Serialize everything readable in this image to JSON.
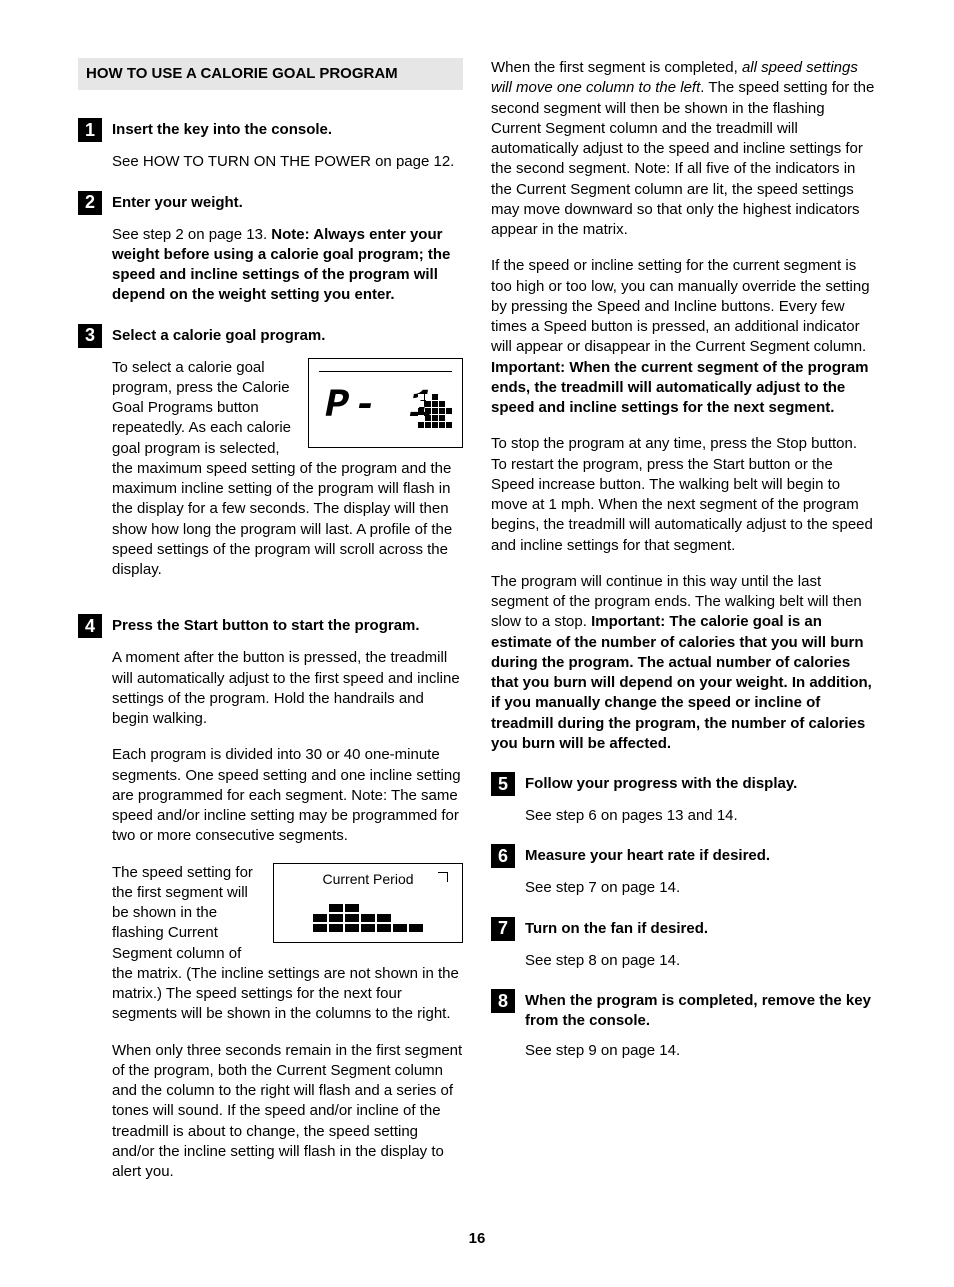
{
  "section_title": "HOW TO USE A CALORIE GOAL PROGRAM",
  "page_number": "16",
  "left": {
    "step1": {
      "num": "1",
      "head": "Insert the key into the console.",
      "p1": "See HOW TO TURN ON THE POWER on page 12."
    },
    "step2": {
      "num": "2",
      "head": "Enter your weight.",
      "p1_pre": "See step 2 on page 13. ",
      "p1_bold": "Note: Always enter your weight before using a calorie goal program; the speed and incline settings of the program will depend on the weight setting you enter."
    },
    "step3": {
      "num": "3",
      "head": "Select a calorie goal program.",
      "lcd_text": "P- 1",
      "p1": "To select a calorie goal program, press the Calorie Goal Programs button repeatedly. As each calorie goal program is selected, the maximum speed setting of the program and the maximum incline setting of the program will flash in the display for a few seconds. The display will then show how long the program will last. A profile of the speed settings of the program will scroll across the display."
    },
    "step4": {
      "num": "4",
      "head": "Press the Start button to start the program.",
      "p1": "A moment after the button is pressed, the treadmill will automatically adjust to the first speed and incline settings of the program. Hold the handrails and begin walking.",
      "p2": "Each program is divided into 30 or 40 one-minute segments. One speed setting and one incline setting are programmed for each segment. Note: The same speed and/or incline setting may be programmed for two or more consecutive segments.",
      "period_label": "Current Period",
      "p3": "The speed setting for the first segment will be shown in the flashing Current Segment column of the matrix. (The incline settings are not shown in the matrix.) The speed settings for the next four segments will be shown in the columns to the right.",
      "p4": "When only three seconds remain in the first segment of the program, both the Current Segment column and the column to the right will flash and a series of tones will sound. If the speed and/or incline of the treadmill is about to change, the speed setting and/or the incline setting will flash in the display to alert you."
    }
  },
  "right": {
    "cont": {
      "p1_pre": "When the first segment is completed, ",
      "p1_italic": "all speed settings will move one column to the left",
      "p1_post": ". The speed setting for the second segment will then be shown in the flashing Current Segment column and the treadmill will automatically adjust to the speed and incline settings for the second segment. Note: If all five of the indicators in the Current Segment column are lit, the speed settings may move downward so that only the highest indicators appear in the matrix.",
      "p2_pre": "If the speed or incline setting for the current segment is too high or too low, you can manually override the setting by pressing the Speed and Incline buttons. Every few times a Speed button is pressed, an additional indicator will appear or disappear in the Current Segment column. ",
      "p2_bold": "Important: When the current segment of the program ends, the treadmill will automatically adjust to the speed and incline settings for the next segment.",
      "p3": "To stop the program at any time, press the Stop button. To restart the program, press the Start button or the Speed increase button. The walking belt will begin to move at 1 mph. When the next segment of the program begins, the treadmill will automatically adjust to the speed and incline settings for that segment.",
      "p4_pre": "The program will continue in this way until the last segment of the program ends. The walking belt will then slow to a stop. ",
      "p4_bold": "Important: The calorie goal is an estimate of the number of calories that you will burn during the program. The actual number of calories that you burn will depend on your weight. In addition, if you manually change the speed or incline of treadmill during the program, the number of calories you burn will be affected."
    },
    "step5": {
      "num": "5",
      "head": "Follow your progress with the display.",
      "p1": "See step 6 on pages 13 and 14."
    },
    "step6": {
      "num": "6",
      "head": "Measure your heart rate if desired.",
      "p1": "See step 7 on page 14."
    },
    "step7": {
      "num": "7",
      "head": "Turn on the fan if desired.",
      "p1": "See step 8 on page 14."
    },
    "step8": {
      "num": "8",
      "head": "When the program is completed, remove the key from the console.",
      "p1": "See step 9 on page 14."
    }
  }
}
